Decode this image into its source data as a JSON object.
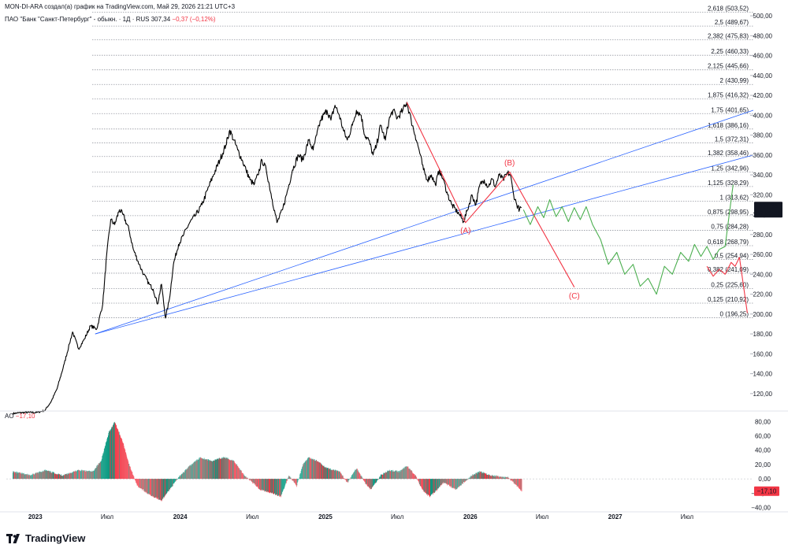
{
  "header": {
    "author_line": "MON-DI-ARA создал(а) график на TradingView.com, Май 29, 2026 21:21 UTC+3",
    "symbol": "ПАО \"Банк \"Санкт-Петербург\" - обыкн. · 1Д · RUS",
    "last_price": "307,34",
    "change": "−0,37 (−0,12%)"
  },
  "badges": {
    "price": "307,34",
    "countdown": "02:28:48",
    "ao": "−17,10"
  },
  "ao_legend": {
    "name": "AO",
    "value": "−17,10"
  },
  "brand": "TradingView",
  "colors": {
    "price_line": "#000000",
    "channel": "#2962ff",
    "wave_red": "#f23645",
    "projection_green": "#4caf50",
    "ao_up": "#089981",
    "ao_down": "#f23645",
    "fib_line": "#9598a1"
  },
  "chart_data": {
    "type": "line",
    "price_axis": {
      "ticks": [
        "500,00",
        "480,00",
        "460,00",
        "440,00",
        "420,00",
        "400,00",
        "380,00",
        "360,00",
        "340,00",
        "320,00",
        "300,00",
        "280,00",
        "260,00",
        "240,00",
        "220,00",
        "200,00",
        "180,00",
        "160,00",
        "140,00",
        "120,00"
      ],
      "ylim": [
        104,
        508
      ]
    },
    "time_axis": {
      "ticks": [
        "2023",
        "Июл",
        "2024",
        "Июл",
        "2025",
        "Июл",
        "2026",
        "Июл",
        "2027",
        "Июл"
      ],
      "tick_dates": [
        "2023-01-01",
        "2023-07-01",
        "2024-01-01",
        "2024-07-01",
        "2025-01-01",
        "2025-07-01",
        "2026-01-01",
        "2026-07-01",
        "2027-01-01",
        "2027-07-01"
      ],
      "xlim": [
        "2022-10-20",
        "2027-12-15"
      ]
    },
    "fibonacci": [
      {
        "ratio": "2,618",
        "price": 503.52
      },
      {
        "ratio": "2,5",
        "price": 489.67
      },
      {
        "ratio": "2,382",
        "price": 475.83
      },
      {
        "ratio": "2,25",
        "price": 460.33
      },
      {
        "ratio": "2,125",
        "price": 445.66
      },
      {
        "ratio": "2",
        "price": 430.99
      },
      {
        "ratio": "1,875",
        "price": 416.32
      },
      {
        "ratio": "1,75",
        "price": 401.65
      },
      {
        "ratio": "1,618",
        "price": 386.16
      },
      {
        "ratio": "1,5",
        "price": 372.31
      },
      {
        "ratio": "1,382",
        "price": 358.46
      },
      {
        "ratio": "1,25",
        "price": 342.96
      },
      {
        "ratio": "1,125",
        "price": 328.29
      },
      {
        "ratio": "1",
        "price": 313.62
      },
      {
        "ratio": "0,875",
        "price": 298.95
      },
      {
        "ratio": "0,75",
        "price": 284.28
      },
      {
        "ratio": "0,618",
        "price": 268.79
      },
      {
        "ratio": "0,5",
        "price": 254.94
      },
      {
        "ratio": "0,382",
        "price": 241.09
      },
      {
        "ratio": "0,25",
        "price": 225.6
      },
      {
        "ratio": "0,125",
        "price": 210.92
      },
      {
        "ratio": "0",
        "price": 196.25
      }
    ],
    "price_series": {
      "name": "",
      "points": [
        [
          "2022-11-05",
          100
        ],
        [
          "2022-12-05",
          101
        ],
        [
          "2023-01-05",
          101
        ],
        [
          "2023-01-25",
          103
        ],
        [
          "2023-02-10",
          112
        ],
        [
          "2023-02-25",
          125
        ],
        [
          "2023-03-15",
          150
        ],
        [
          "2023-03-28",
          170
        ],
        [
          "2023-04-05",
          182
        ],
        [
          "2023-04-20",
          165
        ],
        [
          "2023-05-05",
          175
        ],
        [
          "2023-05-20",
          188
        ],
        [
          "2023-06-05",
          185
        ],
        [
          "2023-06-20",
          210
        ],
        [
          "2023-06-30",
          260
        ],
        [
          "2023-07-10",
          295
        ],
        [
          "2023-07-20",
          290
        ],
        [
          "2023-08-01",
          305
        ],
        [
          "2023-08-10",
          300
        ],
        [
          "2023-08-25",
          285
        ],
        [
          "2023-09-05",
          265
        ],
        [
          "2023-09-20",
          250
        ],
        [
          "2023-10-01",
          240
        ],
        [
          "2023-10-15",
          230
        ],
        [
          "2023-10-25",
          225
        ],
        [
          "2023-11-05",
          210
        ],
        [
          "2023-11-15",
          230
        ],
        [
          "2023-11-25",
          196
        ],
        [
          "2023-12-05",
          215
        ],
        [
          "2023-12-15",
          250
        ],
        [
          "2023-12-28",
          270
        ],
        [
          "2024-01-10",
          280
        ],
        [
          "2024-01-25",
          292
        ],
        [
          "2024-02-10",
          300
        ],
        [
          "2024-02-25",
          310
        ],
        [
          "2024-03-10",
          325
        ],
        [
          "2024-03-25",
          340
        ],
        [
          "2024-04-10",
          355
        ],
        [
          "2024-04-25",
          370
        ],
        [
          "2024-05-05",
          385
        ],
        [
          "2024-05-15",
          375
        ],
        [
          "2024-05-25",
          365
        ],
        [
          "2024-06-05",
          355
        ],
        [
          "2024-06-15",
          345
        ],
        [
          "2024-06-25",
          335
        ],
        [
          "2024-07-05",
          330
        ],
        [
          "2024-07-15",
          340
        ],
        [
          "2024-07-25",
          355
        ],
        [
          "2024-08-05",
          345
        ],
        [
          "2024-08-20",
          315
        ],
        [
          "2024-09-01",
          292
        ],
        [
          "2024-09-15",
          305
        ],
        [
          "2024-09-28",
          325
        ],
        [
          "2024-10-10",
          345
        ],
        [
          "2024-10-25",
          360
        ],
        [
          "2024-11-05",
          355
        ],
        [
          "2024-11-20",
          375
        ],
        [
          "2024-12-01",
          365
        ],
        [
          "2024-12-10",
          380
        ],
        [
          "2024-12-20",
          395
        ],
        [
          "2025-01-05",
          405
        ],
        [
          "2025-01-15",
          395
        ],
        [
          "2025-01-25",
          410
        ],
        [
          "2025-02-05",
          400
        ],
        [
          "2025-02-15",
          385
        ],
        [
          "2025-02-25",
          375
        ],
        [
          "2025-03-10",
          390
        ],
        [
          "2025-03-20",
          405
        ],
        [
          "2025-04-01",
          400
        ],
        [
          "2025-04-10",
          380
        ],
        [
          "2025-04-20",
          375
        ],
        [
          "2025-05-01",
          360
        ],
        [
          "2025-05-10",
          370
        ],
        [
          "2025-05-20",
          390
        ],
        [
          "2025-06-01",
          375
        ],
        [
          "2025-06-10",
          395
        ],
        [
          "2025-06-20",
          405
        ],
        [
          "2025-07-01",
          397
        ],
        [
          "2025-07-15",
          405
        ],
        [
          "2025-07-25",
          413
        ],
        [
          "2025-08-05",
          395
        ],
        [
          "2025-08-15",
          380
        ],
        [
          "2025-08-25",
          365
        ],
        [
          "2025-09-05",
          345
        ],
        [
          "2025-09-15",
          335
        ],
        [
          "2025-09-25",
          340
        ],
        [
          "2025-10-05",
          330
        ],
        [
          "2025-10-15",
          345
        ],
        [
          "2025-10-25",
          335
        ],
        [
          "2025-11-05",
          320
        ],
        [
          "2025-11-15",
          310
        ],
        [
          "2025-11-25",
          305
        ],
        [
          "2025-12-05",
          300
        ],
        [
          "2025-12-15",
          293
        ],
        [
          "2025-12-25",
          305
        ],
        [
          "2026-01-05",
          320
        ],
        [
          "2026-01-15",
          310
        ],
        [
          "2026-01-25",
          330
        ],
        [
          "2026-02-05",
          335
        ],
        [
          "2026-02-15",
          328
        ],
        [
          "2026-02-25",
          336
        ],
        [
          "2026-03-05",
          328
        ],
        [
          "2026-03-15",
          340
        ],
        [
          "2026-03-25",
          335
        ],
        [
          "2026-04-05",
          342
        ],
        [
          "2026-04-12",
          340
        ],
        [
          "2026-04-20",
          320
        ],
        [
          "2026-04-28",
          310
        ],
        [
          "2026-05-05",
          305
        ],
        [
          "2026-05-10",
          307
        ]
      ]
    },
    "wave_abc": {
      "points": [
        [
          "2025-07-25",
          413
        ],
        [
          "2025-12-20",
          292
        ],
        [
          "2026-04-10",
          343
        ],
        [
          "2026-09-20",
          227
        ]
      ],
      "labels": [
        {
          "text": "(A)",
          "date": "2025-12-20",
          "price": 284
        },
        {
          "text": "(B)",
          "date": "2026-04-10",
          "price": 352
        },
        {
          "text": "(C)",
          "date": "2026-09-20",
          "price": 218
        }
      ]
    },
    "channel_lines": [
      {
        "from": [
          "2023-06-01",
          180
        ],
        "to": [
          "2027-12-15",
          405
        ]
      },
      {
        "from": [
          "2023-06-01",
          180
        ],
        "to": [
          "2027-12-15",
          360
        ]
      }
    ],
    "green_projection": [
      [
        "2026-05-15",
        305
      ],
      [
        "2026-06-01",
        290
      ],
      [
        "2026-06-20",
        308
      ],
      [
        "2026-07-05",
        297
      ],
      [
        "2026-07-20",
        315
      ],
      [
        "2026-08-05",
        298
      ],
      [
        "2026-08-20",
        308
      ],
      [
        "2026-09-05",
        293
      ],
      [
        "2026-09-20",
        307
      ],
      [
        "2026-10-05",
        295
      ],
      [
        "2026-10-20",
        308
      ],
      [
        "2026-11-05",
        290
      ],
      [
        "2026-11-25",
        275
      ],
      [
        "2026-12-15",
        250
      ],
      [
        "2027-01-05",
        262
      ],
      [
        "2027-01-25",
        240
      ],
      [
        "2027-02-15",
        250
      ],
      [
        "2027-03-05",
        228
      ],
      [
        "2027-03-25",
        236
      ],
      [
        "2027-04-15",
        220
      ],
      [
        "2027-05-05",
        248
      ],
      [
        "2027-05-25",
        240
      ],
      [
        "2027-06-15",
        262
      ],
      [
        "2027-07-05",
        253
      ],
      [
        "2027-07-20",
        270
      ],
      [
        "2027-08-05",
        258
      ],
      [
        "2027-08-20",
        268
      ],
      [
        "2027-09-05",
        255
      ],
      [
        "2027-09-20",
        265
      ],
      [
        "2027-10-05",
        268
      ],
      [
        "2027-10-25",
        330
      ]
    ],
    "red_projection": [
      [
        "2027-08-20",
        248
      ],
      [
        "2027-09-05",
        238
      ],
      [
        "2027-09-20",
        245
      ],
      [
        "2027-10-05",
        240
      ],
      [
        "2027-10-20",
        252
      ],
      [
        "2027-10-30",
        248
      ],
      [
        "2027-11-10",
        257
      ],
      [
        "2027-11-30",
        201
      ]
    ],
    "ao_panel": {
      "name": "AO",
      "ticks": [
        "80,00",
        "60,00",
        "40,00",
        "20,00",
        "0,00",
        "−20,00",
        "−40,00"
      ],
      "ylim": [
        -46,
        88
      ],
      "start": "2022-11-05",
      "end": "2026-05-10",
      "anchors": [
        [
          "2022-11-05",
          10
        ],
        [
          "2022-12-20",
          5
        ],
        [
          "2023-01-25",
          12
        ],
        [
          "2023-03-10",
          5
        ],
        [
          "2023-04-20",
          12
        ],
        [
          "2023-05-25",
          10
        ],
        [
          "2023-06-15",
          25
        ],
        [
          "2023-07-05",
          65
        ],
        [
          "2023-07-20",
          80
        ],
        [
          "2023-08-10",
          50
        ],
        [
          "2023-08-25",
          20
        ],
        [
          "2023-09-15",
          -10
        ],
        [
          "2023-10-15",
          -22
        ],
        [
          "2023-11-15",
          -30
        ],
        [
          "2023-12-05",
          -15
        ],
        [
          "2024-01-01",
          5
        ],
        [
          "2024-01-25",
          18
        ],
        [
          "2024-02-20",
          30
        ],
        [
          "2024-03-20",
          25
        ],
        [
          "2024-04-20",
          30
        ],
        [
          "2024-05-15",
          25
        ],
        [
          "2024-06-10",
          5
        ],
        [
          "2024-07-01",
          -5
        ],
        [
          "2024-07-20",
          -15
        ],
        [
          "2024-08-20",
          -20
        ],
        [
          "2024-09-10",
          -25
        ],
        [
          "2024-10-01",
          5
        ],
        [
          "2024-10-20",
          -10
        ],
        [
          "2024-11-05",
          20
        ],
        [
          "2024-11-20",
          30
        ],
        [
          "2024-12-10",
          25
        ],
        [
          "2025-01-05",
          15
        ],
        [
          "2025-02-05",
          10
        ],
        [
          "2025-02-25",
          -5
        ],
        [
          "2025-03-20",
          15
        ],
        [
          "2025-04-10",
          -5
        ],
        [
          "2025-04-25",
          -15
        ],
        [
          "2025-05-20",
          5
        ],
        [
          "2025-06-10",
          12
        ],
        [
          "2025-07-05",
          10
        ],
        [
          "2025-07-25",
          18
        ],
        [
          "2025-08-15",
          5
        ],
        [
          "2025-09-01",
          -15
        ],
        [
          "2025-09-20",
          -25
        ],
        [
          "2025-10-10",
          -15
        ],
        [
          "2025-10-25",
          -5
        ],
        [
          "2025-11-10",
          -10
        ],
        [
          "2025-11-25",
          -15
        ],
        [
          "2025-12-15",
          -5
        ],
        [
          "2026-01-05",
          5
        ],
        [
          "2026-01-25",
          10
        ],
        [
          "2026-02-20",
          5
        ],
        [
          "2026-03-15",
          3
        ],
        [
          "2026-04-05",
          2
        ],
        [
          "2026-04-20",
          -5
        ],
        [
          "2026-05-10",
          -17
        ]
      ]
    }
  }
}
